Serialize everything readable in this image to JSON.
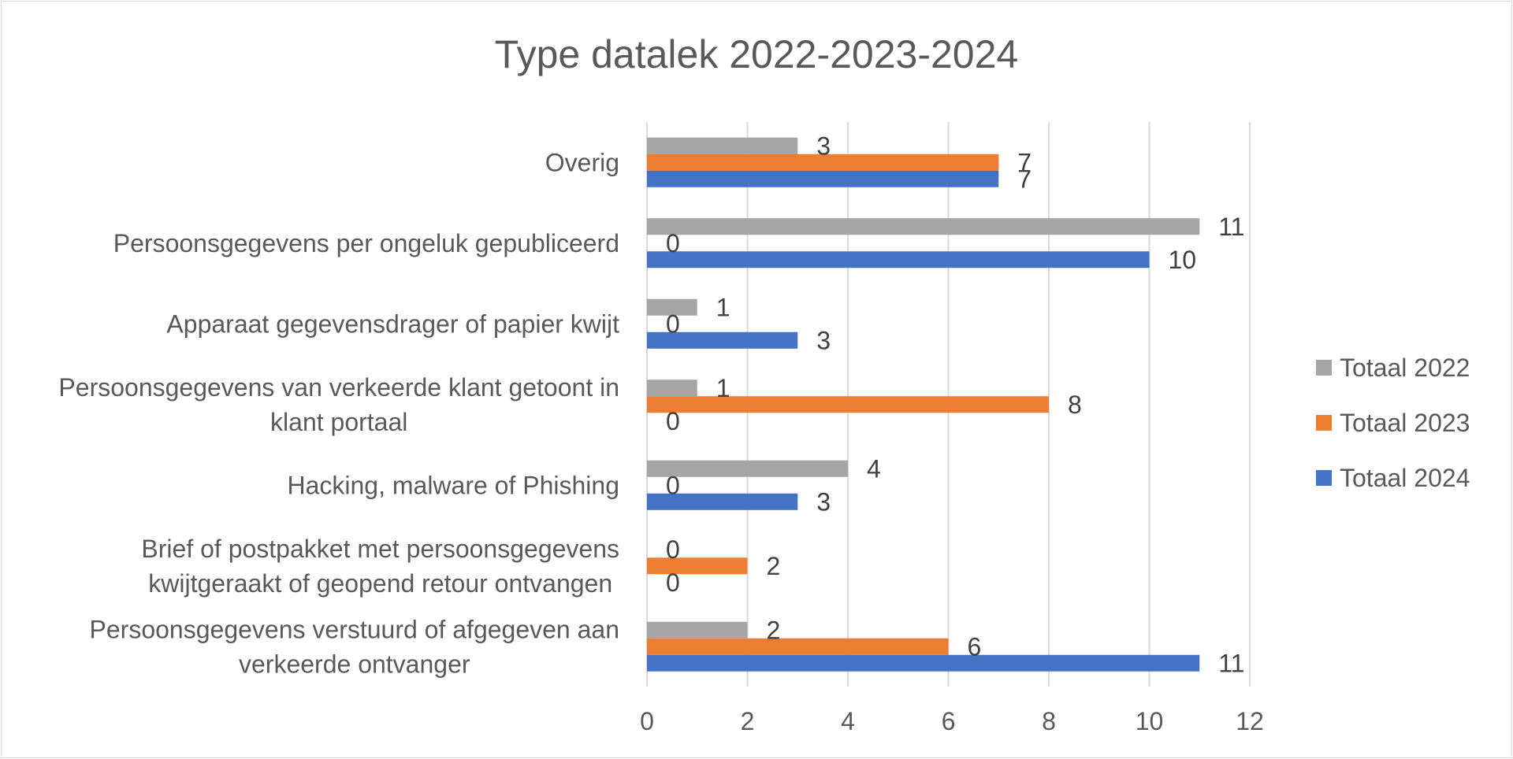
{
  "chart_data": {
    "type": "bar",
    "orientation": "horizontal",
    "title": "Type datalek 2022-2023-2024",
    "categories": [
      [
        "Overig"
      ],
      [
        "Persoonsgegevens per ongeluk gepubliceerd"
      ],
      [
        "Apparaat gegevensdrager of papier kwijt"
      ],
      [
        "Persoonsgegevens van verkeerde klant getoont in",
        "klant portaal"
      ],
      [
        "Hacking, malware of Phishing"
      ],
      [
        "Brief of postpakket met persoonsgegevens",
        "kwijtgeraakt of geopend retour ontvangen"
      ],
      [
        "Persoonsgegevens verstuurd of afgegeven aan",
        "verkeerde ontvanger"
      ]
    ],
    "series": [
      {
        "name": "Totaal 2022",
        "color": "#a5a5a5",
        "values": [
          3,
          11,
          1,
          1,
          4,
          0,
          2
        ]
      },
      {
        "name": "Totaal 2023",
        "color": "#ed7d31",
        "values": [
          7,
          0,
          0,
          8,
          0,
          2,
          6
        ]
      },
      {
        "name": "Totaal 2024",
        "color": "#4472c4",
        "values": [
          7,
          10,
          3,
          0,
          3,
          0,
          11
        ]
      }
    ],
    "xlim": [
      0,
      12
    ],
    "xticks": [
      0,
      2,
      4,
      6,
      8,
      10,
      12
    ],
    "grid": "vertical",
    "legend_position": "right"
  }
}
